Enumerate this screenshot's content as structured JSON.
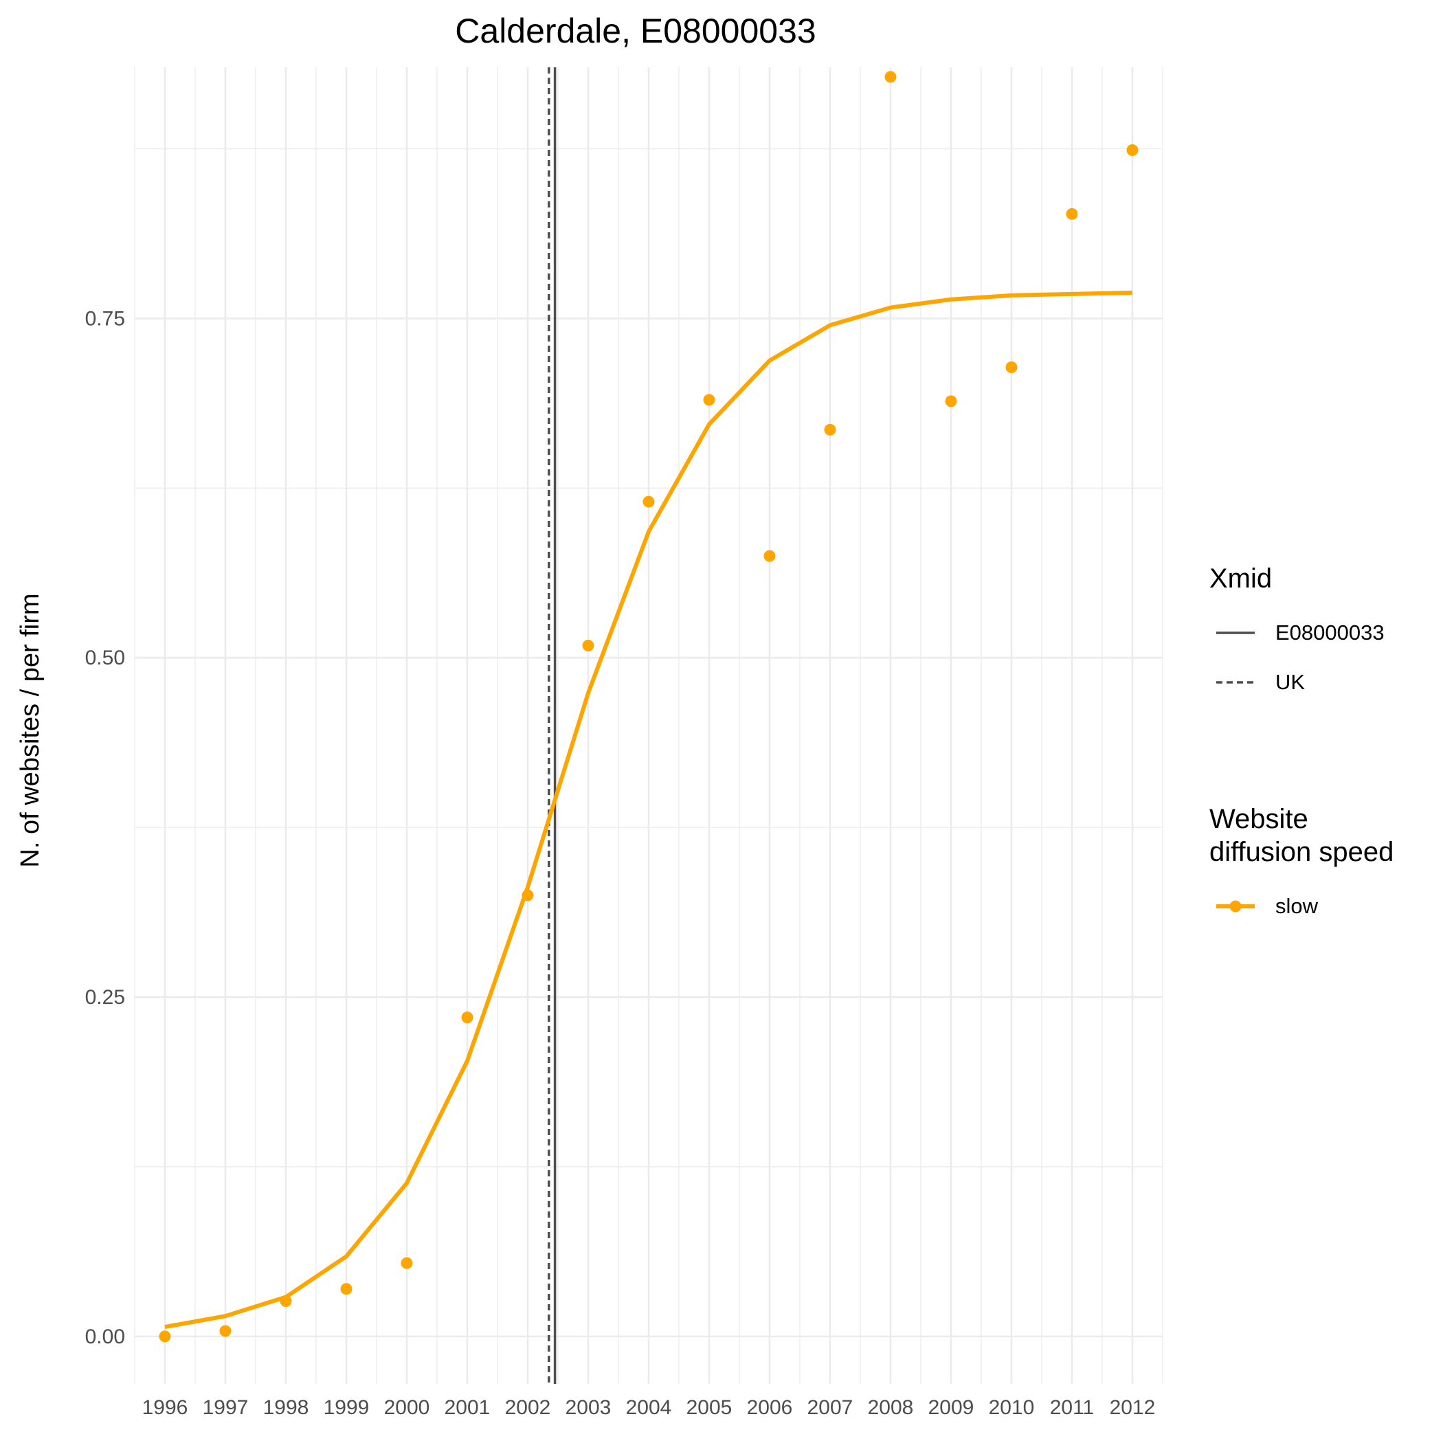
{
  "chart_data": {
    "type": "line",
    "title": "Calderdale, E08000033",
    "xlabel": "",
    "ylabel": "N. of websites / per firm",
    "x": [
      "1996",
      "1997",
      "1998",
      "1999",
      "2000",
      "2001",
      "2002",
      "2003",
      "2004",
      "2005",
      "2006",
      "2007",
      "2008",
      "2009",
      "2010",
      "2011",
      "2012"
    ],
    "x_tick_labels": [
      "1996",
      "1997",
      "1998",
      "1999",
      "2000",
      "2001",
      "2002",
      "2003",
      "2004",
      "2005",
      "2006",
      "2007",
      "2008",
      "2009",
      "2010",
      "2011",
      "2012"
    ],
    "y_tick_labels": [
      "0.00",
      "0.25",
      "0.50",
      "0.75"
    ],
    "y_ticks": [
      0,
      0.25,
      0.5,
      0.75
    ],
    "ylim": [
      -0.035,
      0.935
    ],
    "xlim": [
      1995.5,
      2012.5
    ],
    "grid": true,
    "series": [
      {
        "name": "slow",
        "kind": "points",
        "color": "#FFA500",
        "values": [
          0.0,
          0.004,
          0.026,
          0.035,
          0.054,
          0.235,
          0.325,
          0.509,
          0.615,
          0.69,
          0.575,
          0.668,
          0.928,
          0.689,
          0.714,
          0.827,
          0.874
        ]
      },
      {
        "name": "slow",
        "kind": "fitted_line",
        "color": "#FFA500",
        "values": [
          0.007,
          0.015,
          0.029,
          0.059,
          0.113,
          0.203,
          0.331,
          0.474,
          0.593,
          0.672,
          0.719,
          0.745,
          0.758,
          0.764,
          0.767,
          0.768,
          0.769
        ]
      }
    ],
    "vlines": [
      {
        "name": "E08000033",
        "x": 2002.45,
        "style": "solid",
        "color": "#4d4d4d"
      },
      {
        "name": "UK",
        "x": 2002.35,
        "style": "dashed",
        "color": "#4d4d4d"
      }
    ],
    "legend": {
      "position": "right",
      "groups": [
        {
          "title_lines": [
            "Xmid"
          ],
          "items": [
            {
              "label": "E08000033",
              "style": "solid"
            },
            {
              "label": "UK",
              "style": "dashed"
            }
          ]
        },
        {
          "title_lines": [
            "Website",
            "diffusion speed"
          ],
          "items": [
            {
              "label": "slow",
              "style": "point-line",
              "color": "#FFA500"
            }
          ]
        }
      ]
    }
  }
}
